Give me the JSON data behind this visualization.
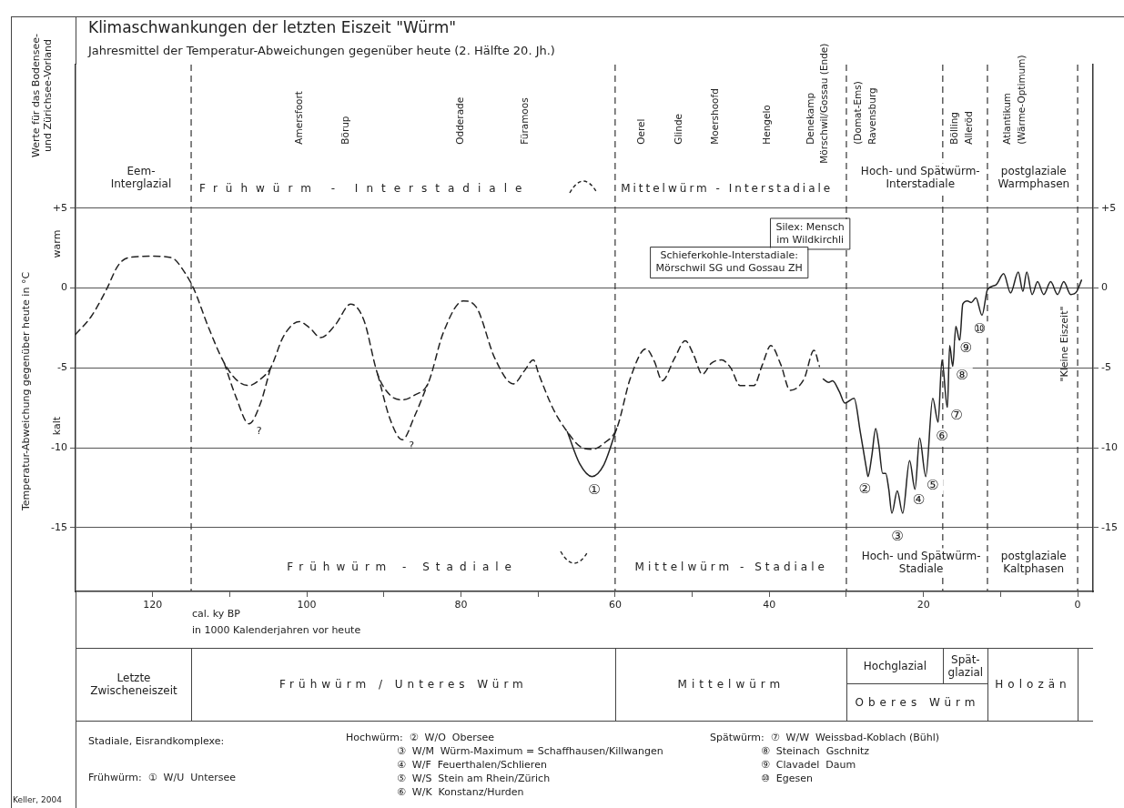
{
  "chart_data": {
    "type": "line",
    "title": "Klimaschwankungen der letzten Eiszeit \"Würm\"",
    "subtitle": "Jahresmittel der Temperatur-Abweichungen gegenüber heute (2. Hälfte 20. Jh.)",
    "xlabel": "cal. ky BP\nin 1000 Kalenderjahren vor heute",
    "ylabel": "Temperatur-Abweichung gegenüber heute in °C",
    "xlim": [
      130,
      -2
    ],
    "xticks": [
      120,
      {
        "value": 110,
        "label": null
      },
      100,
      {
        "value": 90,
        "label": null
      },
      80,
      {
        "value": 70,
        "label": null
      },
      60,
      {
        "value": 50,
        "label": null
      },
      40,
      {
        "value": 30,
        "label": null
      },
      20,
      {
        "value": 10,
        "label": null
      },
      0
    ],
    "ylim": [
      -19,
      14
    ],
    "yticks": [
      {
        "value": 5,
        "label": "+5"
      },
      0,
      -5,
      -10,
      -15
    ],
    "y2lim": [
      -19,
      14
    ],
    "y2ticks": [
      {
        "value": 5,
        "label": "+5"
      },
      0,
      -5,
      -10,
      -15
    ],
    "grid": "y",
    "marker": "none",
    "legend": false,
    "ref_lines": [
      {
        "axis": "x",
        "value": 115,
        "line_style": "dashed",
        "color": "#333333"
      },
      {
        "axis": "x",
        "value": 60,
        "line_style": "dashed",
        "color": "#333333"
      },
      {
        "axis": "x",
        "value": 30,
        "line_style": "dashed",
        "color": "#333333"
      },
      {
        "axis": "x",
        "value": 17.5,
        "line_style": "dashed",
        "color": "#333333"
      },
      {
        "axis": "x",
        "value": 11.7,
        "line_style": "dashed",
        "color": "#333333"
      },
      {
        "axis": "x",
        "value": 0,
        "line_style": "dashed",
        "color": "#333333"
      }
    ],
    "series": [
      {
        "color": "#222222",
        "line_style": "dashed",
        "x": [
          130,
          128,
          126,
          124.5,
          123.2,
          120,
          117.5,
          116,
          114.7,
          112.8,
          110.7,
          109,
          107.5,
          106,
          104.7,
          103,
          101,
          99.6,
          98.2,
          96.3,
          94.3,
          92.6,
          90.8,
          89.2,
          87.6,
          86,
          84.3,
          82.3,
          79.7,
          78,
          75.6,
          73.2,
          71.8,
          70.6,
          69.9,
          68,
          66.2,
          64.6,
          63,
          61.4,
          59.8,
          58,
          56,
          54.9,
          53.9,
          52.3,
          50.9,
          49.8,
          48.7,
          47.5,
          46.2,
          45,
          43.8,
          42,
          40.9,
          39.8,
          38.5,
          37.3,
          35.5,
          34.2,
          33.5
        ],
        "values": [
          -2.9,
          -1.8,
          -0.1,
          1.4,
          1.9,
          2.0,
          1.9,
          1.1,
          0,
          -2.4,
          -4.7,
          -5.8,
          -6.1,
          -5.7,
          -5.0,
          -3.0,
          -2.1,
          -2.5,
          -3.1,
          -2.3,
          -1.0,
          -2.0,
          -5.4,
          -6.7,
          -7.0,
          -6.7,
          -6.0,
          -2.8,
          -0.8,
          -1.2,
          -4.4,
          -6.0,
          -5.2,
          -4.5,
          -5.4,
          -7.6,
          -9.0,
          -9.9,
          -10.1,
          -9.7,
          -8.8,
          -5.6,
          -3.8,
          -4.6,
          -5.8,
          -4.4,
          -3.3,
          -4.2,
          -5.4,
          -4.7,
          -4.5,
          -5.0,
          -6.1,
          -6.1,
          -4.8,
          -3.6,
          -4.8,
          -6.4,
          -5.7,
          -3.9,
          -4.9
        ]
      },
      {
        "color": "#222222",
        "line_style": "dashed",
        "x": [
          110.7,
          109.2,
          107.5,
          106,
          104.7
        ],
        "values": [
          -4.7,
          -6.8,
          -8.5,
          -7.2,
          -5.0
        ]
      },
      {
        "color": "#222222",
        "line_style": "dashed",
        "x": [
          90.8,
          89.2,
          87.6,
          86,
          84.3
        ],
        "values": [
          -5.4,
          -8.2,
          -9.5,
          -8.0,
          -6.0
        ]
      },
      {
        "color": "#222222",
        "line_style": "solid",
        "x": [
          66.2,
          64.6,
          63,
          61.5,
          59.8
        ],
        "values": [
          -9.0,
          -11.0,
          -11.8,
          -11.1,
          -8.8
        ]
      },
      {
        "color": "#222222",
        "line_style": "solid",
        "x": [
          33,
          32.3,
          31.8,
          30.9,
          30.2,
          29,
          28.2,
          27.4,
          27.2,
          26.7,
          26.2,
          25.8,
          25.3,
          24.9,
          24.5,
          24.1,
          23.4,
          22.7,
          21.8,
          21.1,
          20.5,
          19.7,
          18.8,
          18.1,
          17.6,
          16.9,
          16.6,
          16.2,
          15.8,
          15.3,
          14.9,
          14.3,
          13.8,
          13.2,
          12.4,
          11.7,
          10.6,
          9.6,
          8.7,
          7.7,
          7.1,
          6.6,
          5.9,
          5.2,
          4.4,
          3.5,
          2.6,
          1.8,
          0.9,
          0.1,
          -0.5
        ],
        "values": [
          -5.7,
          -5.9,
          -5.8,
          -6.5,
          -7.2,
          -6.9,
          -9.0,
          -11.3,
          -11.8,
          -10.5,
          -8.8,
          -9.8,
          -11.6,
          -11.6,
          -12.6,
          -14.1,
          -12.7,
          -14.1,
          -10.8,
          -12.6,
          -9.4,
          -11.8,
          -6.9,
          -8.4,
          -4.5,
          -7.5,
          -3.6,
          -4.9,
          -2.4,
          -3.3,
          -1.0,
          -0.8,
          -0.9,
          -0.6,
          -1.7,
          -0.1,
          0.2,
          0.9,
          -0.3,
          1.0,
          -0.2,
          1.0,
          -0.4,
          0.4,
          -0.4,
          0.4,
          -0.4,
          0.4,
          -0.4,
          -0.2,
          0.5
        ]
      }
    ],
    "annotations": [
      "Amersfoort",
      "Börup",
      "Odderade",
      "Füramoos",
      "Oerel",
      "Glinde",
      "Moershoofd",
      "Hengelo",
      "Denekamp",
      "Mörschwil/Gossau (Ende)",
      "(Domat-Ems)",
      "Ravensburg",
      "Bölling",
      "Alleröd",
      "Atlantikum",
      "(Wärme-Optimum)",
      "Eem-\nInterglazial",
      "Frühwürm - Interstadiale",
      "Mittelwürm - Interstadiale",
      "Hoch- und Spätwürm-\nInterstadiale",
      "postglaziale\nWarmphasen",
      "Frühwürm - Stadiale",
      "Mittelwürm - Stadiale",
      "Hoch- und Spätwürm-\nStadiale",
      "postglaziale\nKaltphasen",
      "Silex: Mensch\nim Wildkirchli",
      "Schieferkohle-Interstadiale:\nMörschwil SG und Gossau ZH",
      "\"Kleine Eiszeit\"",
      "?",
      "?",
      "①",
      "②",
      "③",
      "④",
      "⑤",
      "⑥",
      "⑦",
      "⑧",
      "⑨",
      "⑩",
      "Werte für das Bodensee-\nund Zürichsee-Vorland",
      "warm",
      "kalt",
      "Letzte\nZwischeneiszeit",
      "Frühwürm / Unteres Würm",
      "Mittelwürm",
      "Hochglazial",
      "Spät-\nglazial",
      "Oberes Würm",
      "Holozän",
      "Stadiale, Eisrandkomplexe:",
      "Frühwürm:  ①  W/U  Untersee",
      "Hochwürm:  ②  W/O  Obersee",
      "③  W/M  Würm-Maximum = Schaffhausen/Killwangen",
      "④  W/F  Feuerthalen/Schlieren",
      "⑤  W/S  Stein am Rhein/Zürich",
      "⑥  W/K  Konstanz/Hurden",
      "Spätwürm:  ⑦  W/W  Weissbad-Koblach (Bühl)",
      "⑧  Steinach  Gschnitz",
      "⑨  Clavadel  Daum",
      "⑩  Egesen",
      "Keller, 2004"
    ]
  }
}
